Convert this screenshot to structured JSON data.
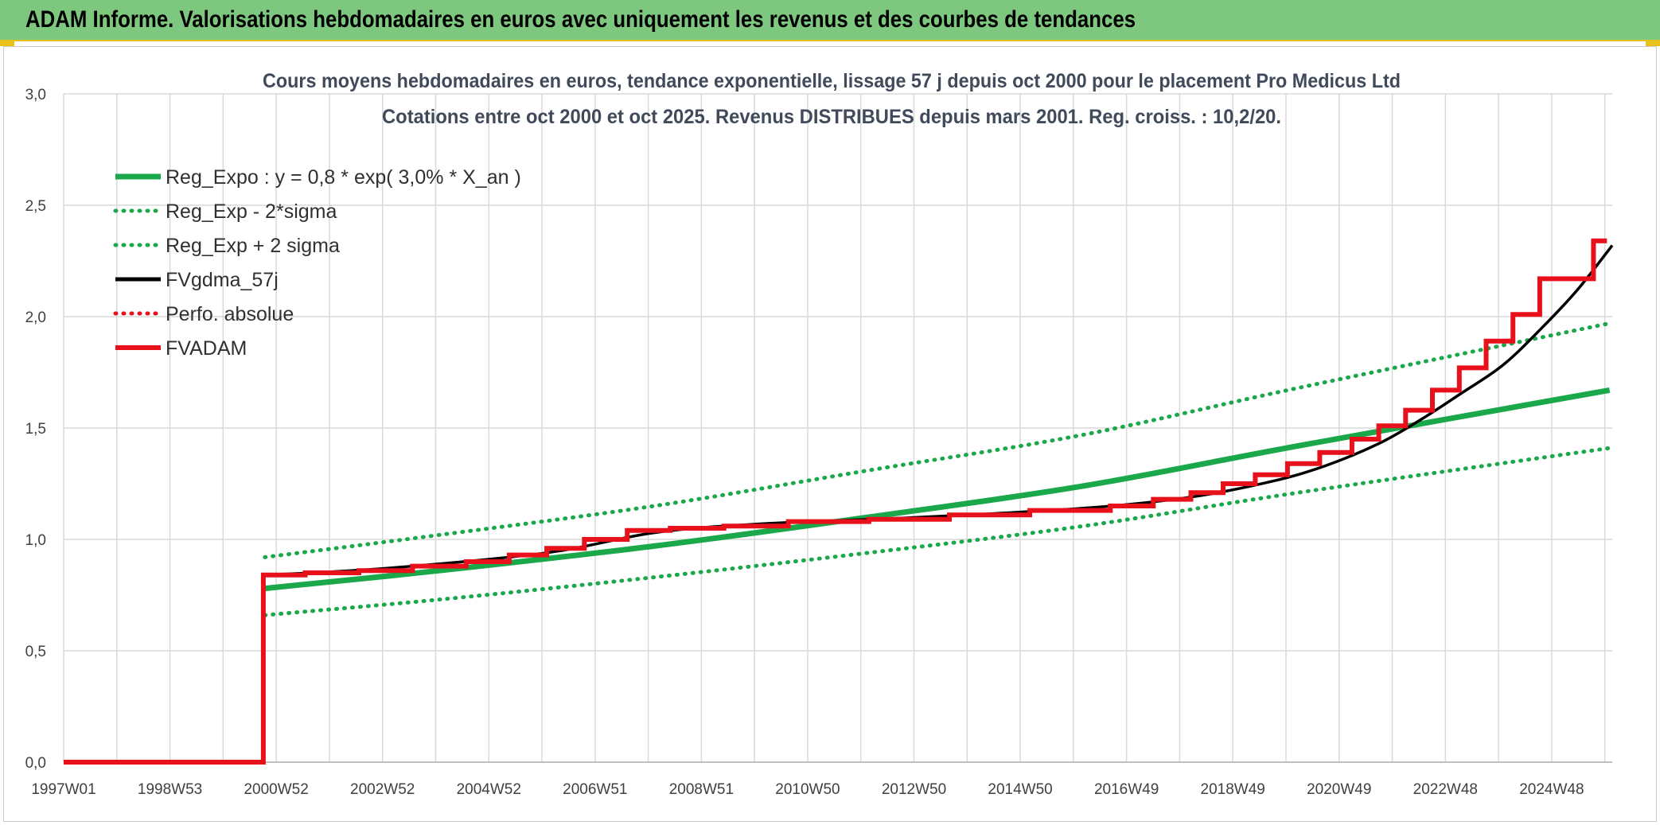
{
  "header": {
    "title": "ADAM Informe. Valorisations hebdomadaires en euros avec uniquement les revenus et des courbes de tendances"
  },
  "colors": {
    "banner_bg": "#7ec77e",
    "banner_border": "#e8c21a",
    "reg_green": "#1aa84a",
    "adam_red": "#e8101a",
    "fv_black": "#000000",
    "grid": "#d9d9d9"
  },
  "chart_data": {
    "type": "line",
    "title": "Cours moyens hebdomadaires en euros, tendance exponentielle, lissage 57 j depuis oct 2000 pour le placement Pro Medicus Ltd",
    "subtitle": "Cotations entre oct 2000 et oct 2025. Revenus DISTRIBUES depuis mars 2001. Reg. croiss. : 10,2/20.",
    "x_ticks": [
      "1997W01",
      "1998W53",
      "2000W52",
      "2002W52",
      "2004W52",
      "2006W51",
      "2008W51",
      "2010W50",
      "2012W50",
      "2014W50",
      "2016W49",
      "2018W49",
      "2020W49",
      "2022W48",
      "2024W48"
    ],
    "x_range": [
      1997.0,
      2025.85
    ],
    "y_ticks": [
      "0,0",
      "0,5",
      "1,0",
      "1,5",
      "2,0",
      "2,5",
      "3,0"
    ],
    "ylim": [
      0,
      3.0
    ],
    "grid": true,
    "legend_position": "top-left",
    "series": [
      {
        "name": "Reg_Expo : y = 0,8 * exp( 3,0% *  X_an )",
        "style": "solid-thick",
        "color": "#1aa84a",
        "x": [
          2000.75,
          2004,
          2008,
          2012,
          2016,
          2020,
          2025.8
        ],
        "y": [
          0.78,
          0.86,
          0.97,
          1.1,
          1.24,
          1.42,
          1.67
        ]
      },
      {
        "name": "Reg_Exp - 2*sigma",
        "style": "dotted",
        "color": "#1aa84a",
        "x": [
          2000.75,
          2004,
          2008,
          2012,
          2016,
          2020,
          2025.8
        ],
        "y": [
          0.66,
          0.73,
          0.83,
          0.94,
          1.06,
          1.21,
          1.41
        ]
      },
      {
        "name": "Reg_Exp + 2 sigma",
        "style": "dotted",
        "color": "#1aa84a",
        "x": [
          2000.75,
          2004,
          2008,
          2012,
          2016,
          2020,
          2025.8
        ],
        "y": [
          0.92,
          1.02,
          1.15,
          1.31,
          1.47,
          1.68,
          1.97
        ]
      },
      {
        "name": "FVgdma_57j",
        "style": "solid",
        "color": "#000000",
        "x": [
          2000.75,
          2003,
          2006,
          2008,
          2010,
          2013,
          2016,
          2018,
          2019.5,
          2020.5,
          2021.5,
          2022.3,
          2023,
          2023.8,
          2024.5,
          2025.2,
          2025.85
        ],
        "y": [
          0.84,
          0.87,
          0.94,
          1.03,
          1.07,
          1.1,
          1.14,
          1.19,
          1.26,
          1.33,
          1.43,
          1.54,
          1.65,
          1.78,
          1.94,
          2.12,
          2.32
        ]
      },
      {
        "name": "Perfo. absolue",
        "style": "dotted",
        "color": "#e8101a",
        "x": [],
        "y": []
      },
      {
        "name": "FVADAM",
        "style": "step-thick",
        "color": "#e8101a",
        "x": [
          1997.0,
          2000.7,
          2000.72,
          2001.5,
          2002.5,
          2003.5,
          2004.5,
          2005.3,
          2006.0,
          2006.7,
          2007.5,
          2008.3,
          2009.3,
          2010.5,
          2012,
          2013.5,
          2015,
          2016.5,
          2017.3,
          2018.0,
          2018.6,
          2019.2,
          2019.8,
          2020.4,
          2021.0,
          2021.5,
          2022.0,
          2022.5,
          2023.0,
          2023.5,
          2024.0,
          2024.5,
          2025.0,
          2025.5,
          2025.75
        ],
        "y": [
          0.0,
          0.0,
          0.84,
          0.85,
          0.86,
          0.88,
          0.9,
          0.93,
          0.96,
          1.0,
          1.04,
          1.05,
          1.06,
          1.08,
          1.09,
          1.11,
          1.13,
          1.15,
          1.18,
          1.21,
          1.25,
          1.29,
          1.34,
          1.39,
          1.45,
          1.51,
          1.58,
          1.67,
          1.77,
          1.89,
          2.01,
          2.17,
          2.17,
          2.34,
          2.34
        ]
      }
    ]
  }
}
